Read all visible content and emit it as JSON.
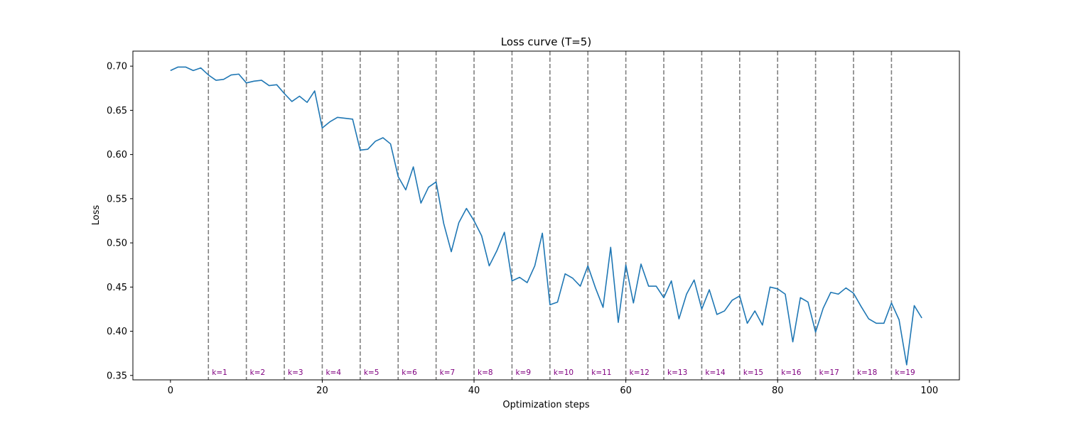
{
  "chart_data": {
    "type": "line",
    "title": "Loss curve (T=5)",
    "xlabel": "Optimization steps",
    "ylabel": "Loss",
    "xlim": [
      -4.95,
      103.95
    ],
    "ylim": [
      0.345,
      0.717
    ],
    "xticks": [
      0,
      20,
      40,
      60,
      80,
      100
    ],
    "yticks": [
      0.35,
      0.4,
      0.45,
      0.5,
      0.55,
      0.6,
      0.65,
      0.7
    ],
    "grid": false,
    "series": [
      {
        "color": "#1f77b4",
        "x": [
          0,
          1,
          2,
          3,
          4,
          5,
          6,
          7,
          8,
          9,
          10,
          11,
          12,
          13,
          14,
          15,
          16,
          17,
          18,
          19,
          20,
          21,
          22,
          23,
          24,
          25,
          26,
          27,
          28,
          29,
          30,
          31,
          32,
          33,
          34,
          35,
          36,
          37,
          38,
          39,
          40,
          41,
          42,
          43,
          44,
          45,
          46,
          47,
          48,
          49,
          50,
          51,
          52,
          53,
          54,
          55,
          56,
          57,
          58,
          59,
          60,
          61,
          62,
          63,
          64,
          65,
          66,
          67,
          68,
          69,
          70,
          71,
          72,
          73,
          74,
          75,
          76,
          77,
          78,
          79,
          80,
          81,
          82,
          83,
          84,
          85,
          86,
          87,
          88,
          89,
          90,
          91,
          92,
          93,
          94,
          95,
          96,
          97,
          98,
          99
        ],
        "y": [
          0.695,
          0.699,
          0.699,
          0.695,
          0.698,
          0.69,
          0.684,
          0.685,
          0.69,
          0.691,
          0.681,
          0.683,
          0.684,
          0.678,
          0.679,
          0.669,
          0.66,
          0.666,
          0.659,
          0.672,
          0.63,
          0.637,
          0.642,
          0.641,
          0.64,
          0.605,
          0.606,
          0.615,
          0.619,
          0.612,
          0.575,
          0.56,
          0.586,
          0.545,
          0.563,
          0.569,
          0.522,
          0.49,
          0.523,
          0.539,
          0.525,
          0.508,
          0.474,
          0.491,
          0.512,
          0.457,
          0.461,
          0.455,
          0.474,
          0.511,
          0.43,
          0.433,
          0.465,
          0.46,
          0.451,
          0.474,
          0.449,
          0.427,
          0.495,
          0.41,
          0.475,
          0.432,
          0.476,
          0.451,
          0.451,
          0.438,
          0.457,
          0.414,
          0.442,
          0.458,
          0.425,
          0.447,
          0.419,
          0.423,
          0.435,
          0.44,
          0.409,
          0.423,
          0.407,
          0.45,
          0.448,
          0.442,
          0.388,
          0.438,
          0.433,
          0.399,
          0.426,
          0.444,
          0.442,
          0.449,
          0.443,
          0.428,
          0.414,
          0.409,
          0.409,
          0.432,
          0.413,
          0.362,
          0.429,
          0.415
        ]
      }
    ],
    "vlines": {
      "x": [
        5,
        10,
        15,
        20,
        25,
        30,
        35,
        40,
        45,
        50,
        55,
        60,
        65,
        70,
        75,
        80,
        85,
        90,
        95
      ],
      "color": "#808080",
      "style": "dashed"
    },
    "annotations": {
      "color": "#800080",
      "items": [
        {
          "x": 5,
          "text": "k=1"
        },
        {
          "x": 10,
          "text": "k=2"
        },
        {
          "x": 15,
          "text": "k=3"
        },
        {
          "x": 20,
          "text": "k=4"
        },
        {
          "x": 25,
          "text": "k=5"
        },
        {
          "x": 30,
          "text": "k=6"
        },
        {
          "x": 35,
          "text": "k=7"
        },
        {
          "x": 40,
          "text": "k=8"
        },
        {
          "x": 45,
          "text": "k=9"
        },
        {
          "x": 50,
          "text": "k=10"
        },
        {
          "x": 55,
          "text": "k=11"
        },
        {
          "x": 60,
          "text": "k=12"
        },
        {
          "x": 65,
          "text": "k=13"
        },
        {
          "x": 70,
          "text": "k=14"
        },
        {
          "x": 75,
          "text": "k=15"
        },
        {
          "x": 80,
          "text": "k=16"
        },
        {
          "x": 85,
          "text": "k=17"
        },
        {
          "x": 90,
          "text": "k=18"
        },
        {
          "x": 95,
          "text": "k=19"
        }
      ]
    }
  }
}
